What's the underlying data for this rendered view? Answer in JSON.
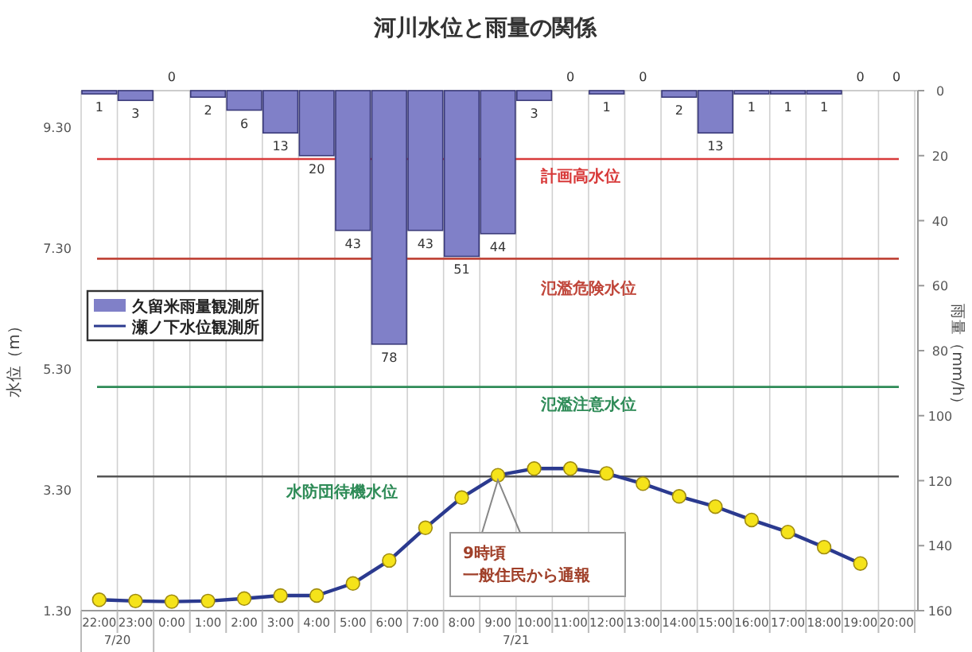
{
  "chart_data": {
    "type": "bar",
    "title": "河川水位と雨量の関係",
    "ylabel": "水位（m）",
    "y2label": "雨量（mm/h）",
    "categories": [
      "22:00",
      "23:00",
      "0:00",
      "1:00",
      "2:00",
      "3:00",
      "4:00",
      "5:00",
      "6:00",
      "7:00",
      "8:00",
      "9:00",
      "10:00",
      "11:00",
      "12:00",
      "13:00",
      "14:00",
      "15:00",
      "16:00",
      "17:00",
      "18:00",
      "19:00",
      "20:00"
    ],
    "series": [
      {
        "name": "久留米雨量観測所",
        "axis": "y2",
        "color": "#8080c8",
        "values": [
          1,
          3,
          0,
          2,
          6,
          13,
          20,
          43,
          78,
          43,
          51,
          44,
          3,
          0,
          1,
          0,
          2,
          13,
          1,
          1,
          1,
          0,
          0
        ],
        "value_labels": [
          "1",
          "3",
          "0",
          "2",
          "6",
          "13",
          "20",
          "43",
          "78",
          "43",
          "51",
          "44",
          "3",
          "0",
          "1",
          "0",
          "2",
          "13",
          "1",
          "1",
          "1",
          "0",
          "0"
        ]
      },
      {
        "name": "瀬ノ下水位観測所",
        "type": "line",
        "color": "#2b3a8f",
        "values": [
          1.48,
          1.46,
          1.45,
          1.46,
          1.5,
          1.55,
          1.55,
          1.75,
          2.13,
          2.67,
          3.17,
          3.54,
          3.65,
          3.65,
          3.57,
          3.4,
          3.19,
          3.02,
          2.8,
          2.6,
          2.35,
          2.08,
          null
        ]
      }
    ],
    "ylim": [
      1.3,
      9.9
    ],
    "yticks": [
      {
        "value": 1.3,
        "label": "1.30"
      },
      {
        "value": 3.3,
        "label": "3.30"
      },
      {
        "value": 5.3,
        "label": "5.30"
      },
      {
        "value": 7.3,
        "label": "7.30"
      },
      {
        "value": 9.3,
        "label": "9.30"
      }
    ],
    "y2lim": [
      160,
      0
    ],
    "y2ticks": [
      0,
      20,
      40,
      60,
      80,
      100,
      120,
      140,
      160
    ],
    "ref_lines": [
      {
        "axis": "y",
        "value": 8.77,
        "label": "計画高水位",
        "color": "#d83a3a"
      },
      {
        "axis": "y",
        "value": 7.12,
        "label": "氾濫危険水位",
        "color": "#c0463a"
      },
      {
        "axis": "y",
        "value": 5.0,
        "label": "氾濫注意水位",
        "color": "#2e8b57"
      },
      {
        "axis": "y",
        "value": 3.52,
        "label": "水防団待機水位",
        "color": "#555555"
      }
    ],
    "annotations": [
      "9時頃",
      "一般住民から通報",
      "7/20",
      "7/21"
    ],
    "grid": "x",
    "legend": "top left",
    "marker": "circle"
  }
}
